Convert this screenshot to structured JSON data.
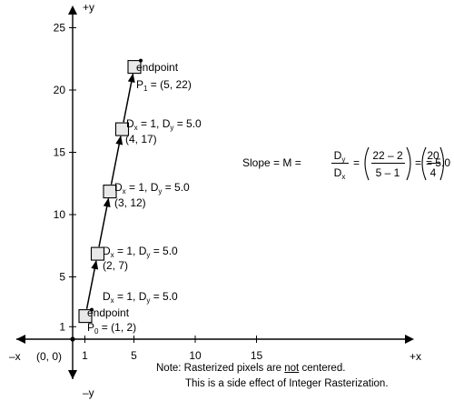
{
  "axes": {
    "x_pos_label": "+x",
    "x_neg_label": "–x",
    "y_pos_label": "+y",
    "y_neg_label": "–y",
    "origin_label": "(0, 0)",
    "x_ticks": [
      "1",
      "5",
      "10",
      "15"
    ],
    "x_tick_values": [
      1,
      5,
      10,
      15
    ],
    "y_ticks": [
      "1",
      "5",
      "10",
      "15",
      "20",
      "25"
    ],
    "y_tick_values": [
      1,
      5,
      10,
      15,
      20,
      25
    ]
  },
  "pixels": [
    {
      "x": 1,
      "y": 2,
      "label": "(1, 2)",
      "tag": "endpoint",
      "point_name": "P",
      "point_sub": "0",
      "point_value": " = (1, 2)"
    },
    {
      "x": 2,
      "y": 7,
      "label": "(2, 7)"
    },
    {
      "x": 3,
      "y": 12,
      "label": "(3, 12)"
    },
    {
      "x": 4,
      "y": 17,
      "label": "(4, 17)"
    },
    {
      "x": 5,
      "y": 22,
      "label": "(5, 22)",
      "tag": "endpoint",
      "point_name": "P",
      "point_sub": "1",
      "point_value": " = (5, 22)"
    }
  ],
  "steps": [
    {
      "dx_sym": "D",
      "dx_sub": "x",
      "dx_val": " = 1, ",
      "dy_sym": "D",
      "dy_sub": "y",
      "dy_val": " = 5.0"
    },
    {
      "dx_sym": "D",
      "dx_sub": "x",
      "dx_val": " = 1, ",
      "dy_sym": "D",
      "dy_sub": "y",
      "dy_val": " = 5.0"
    },
    {
      "dx_sym": "D",
      "dx_sub": "x",
      "dx_val": " = 1, ",
      "dy_sym": "D",
      "dy_sub": "y",
      "dy_val": " = 5.0"
    },
    {
      "dx_sym": "D",
      "dx_sub": "x",
      "dx_val": " = 1, ",
      "dy_sym": "D",
      "dy_sub": "y",
      "dy_val": " = 5.0"
    }
  ],
  "slope": {
    "lhs": "Slope = M =",
    "num_sym": "D",
    "num_sub": "y",
    "den_sym": "D",
    "den_sub": "x",
    "eq": "=",
    "num2": "22 – 2",
    "den2": "5 – 1",
    "num3": "20",
    "den3": "4",
    "result": "= 5.0"
  },
  "note": {
    "prefix": "Note:  Rasterized pixels are ",
    "underlined": "not",
    "suffix": " centered.",
    "line2": "This is a side effect of Integer Rasterization."
  }
}
